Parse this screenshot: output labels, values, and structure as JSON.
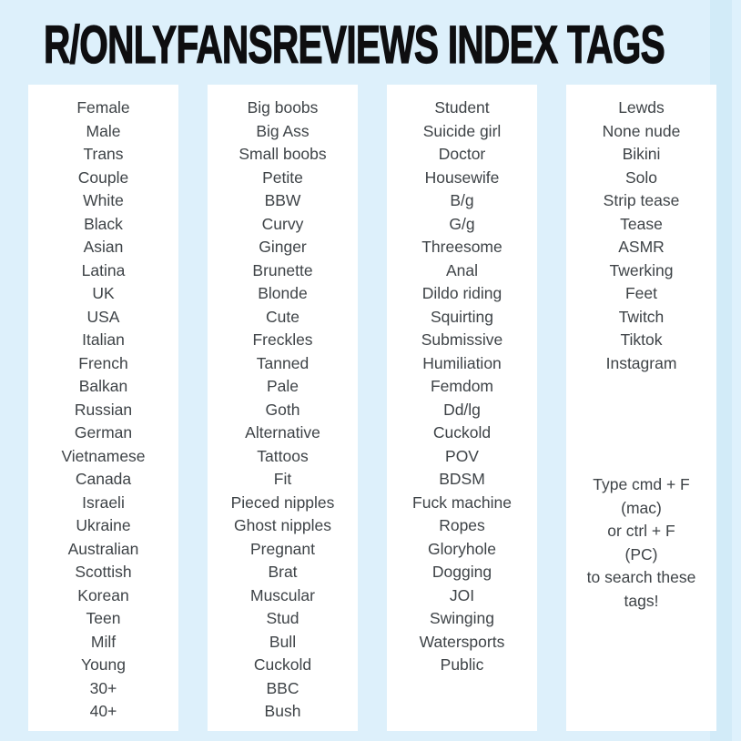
{
  "page": {
    "title": "R/ONLYFANSREVIEWS INDEX TAGS",
    "background_color": "#ddf0fb",
    "card_color": "#ffffff",
    "title_color": "#0e0e10",
    "tag_text_color": "#3e4347"
  },
  "columns": [
    {
      "name": "column-1",
      "tags": [
        "Female",
        "Male",
        "Trans",
        "Couple",
        "White",
        "Black",
        "Asian",
        "Latina",
        "UK",
        "USA",
        "Italian",
        "French",
        "Balkan",
        "Russian",
        "German",
        "Vietnamese",
        "Canada",
        "Israeli",
        "Ukraine",
        "Australian",
        "Scottish",
        "Korean",
        "Teen",
        "Milf",
        "Young",
        "30+",
        "40+"
      ]
    },
    {
      "name": "column-2",
      "tags": [
        "Big boobs",
        "Big Ass",
        "Small boobs",
        "Petite",
        "BBW",
        "Curvy",
        "Ginger",
        "Brunette",
        "Blonde",
        "Cute",
        "Freckles",
        "Tanned",
        "Pale",
        "Goth",
        "Alternative",
        "Tattoos",
        "Fit",
        "Pieced nipples",
        "Ghost nipples",
        "Pregnant",
        "Brat",
        "Muscular",
        "Stud",
        "Bull",
        "Cuckold",
        "BBC",
        "Bush"
      ]
    },
    {
      "name": "column-3",
      "tags": [
        "Student",
        "Suicide girl",
        "Doctor",
        "Housewife",
        "B/g",
        "G/g",
        "Threesome",
        "Anal",
        "Dildo riding",
        "Squirting",
        "Submissive",
        "Humiliation",
        "Femdom",
        "Dd/lg",
        "Cuckold",
        "POV",
        "BDSM",
        "Fuck machine",
        "Ropes",
        "Gloryhole",
        "Dogging",
        "JOI",
        "Swinging",
        "Watersports",
        "Public"
      ]
    },
    {
      "name": "column-4",
      "tags": [
        "Lewds",
        "None nude",
        "Bikini",
        "Solo",
        "Strip tease",
        "Tease",
        "ASMR",
        "Twerking",
        "Feet",
        "Twitch",
        "Tiktok",
        "Instagram"
      ],
      "note_lines": [
        "Type cmd + F",
        "(mac)",
        "or ctrl + F",
        "(PC)",
        "to search these",
        "tags!"
      ]
    }
  ]
}
